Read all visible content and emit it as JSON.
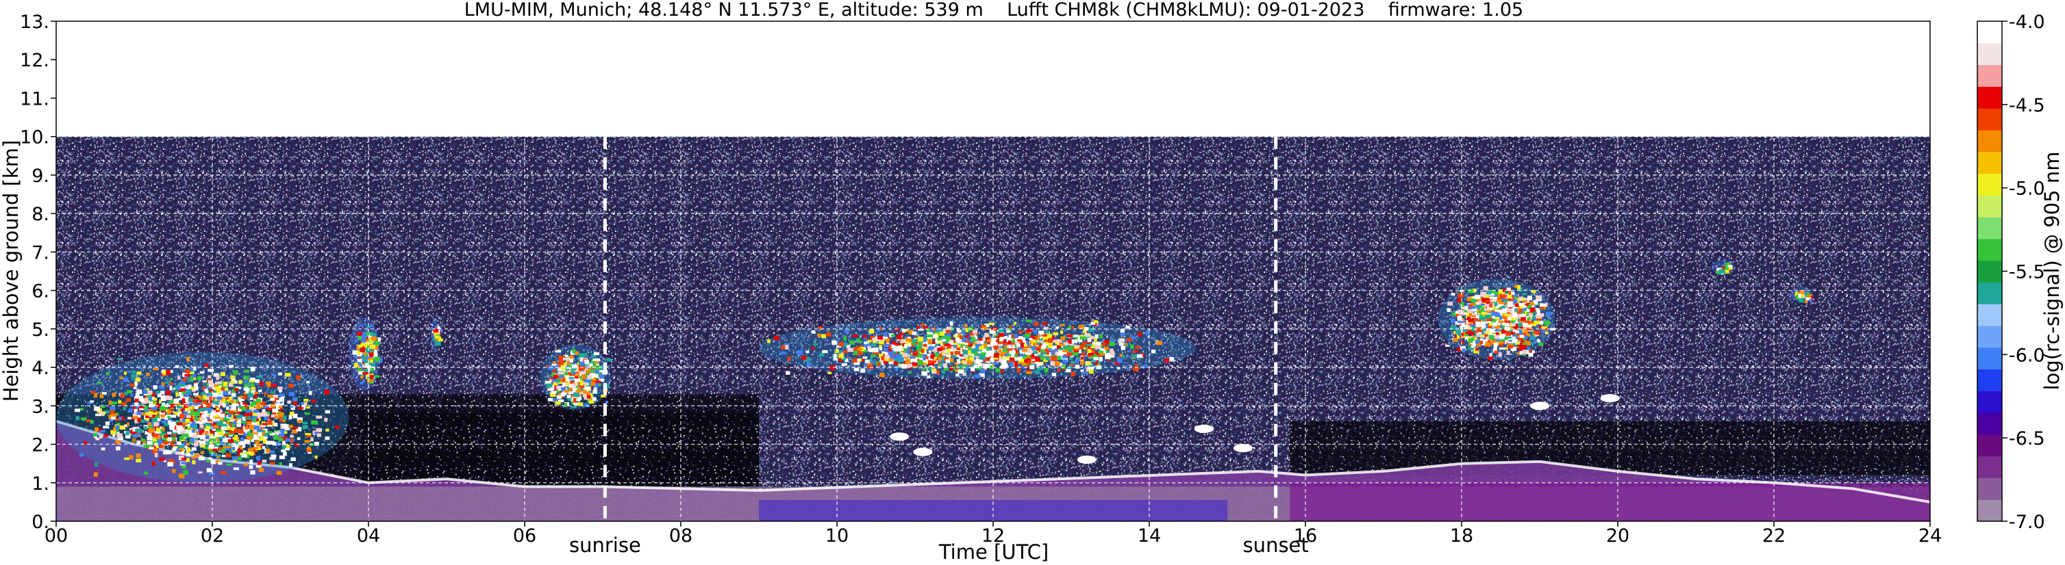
{
  "chart_data": {
    "type": "heatmap",
    "title": "LMU-MIM, Munich; 48.148° N 11.573° E, altitude: 539 m    Lufft CHM8k (CHM8kLMU): 09-01-2023    firmware: 1.05",
    "xlabel": "Time [UTC]",
    "ylabel": "Height above ground [km]",
    "colorbar_label": "log(rc-signal) @ 905 nm",
    "xlim": [
      0,
      24
    ],
    "ylim": [
      0,
      13
    ],
    "x_ticks": [
      "00",
      "02",
      "04",
      "06",
      "08",
      "10",
      "12",
      "14",
      "16",
      "18",
      "20",
      "22",
      "24"
    ],
    "y_ticks": [
      "0.",
      "1.",
      "2.",
      "3.",
      "4.",
      "5.",
      "6.",
      "7.",
      "8.",
      "9.",
      "10.",
      "11.",
      "12.",
      "13."
    ],
    "colorbar_range": [
      -7.0,
      -4.0
    ],
    "colorbar_ticks": [
      "-4.0",
      "-4.5",
      "-5.0",
      "-5.5",
      "-6.0",
      "-6.5",
      "-7.0"
    ],
    "colormap": [
      "#a08ca8",
      "#8a5d9a",
      "#7a2f8e",
      "#6a0a80",
      "#4a00a0",
      "#2b10d0",
      "#1f3ff0",
      "#3f7ff5",
      "#6fa5f8",
      "#9fc8fb",
      "#1fa89a",
      "#18a040",
      "#36c53a",
      "#7ee070",
      "#c8f060",
      "#f0f020",
      "#f5c000",
      "#f58a00",
      "#f04000",
      "#e80000",
      "#f4a0a0",
      "#f2e4e4",
      "#ffffff"
    ],
    "measurement_top_km": 10.0,
    "grid": true,
    "annotations": [
      {
        "label": "sunrise",
        "time": 7.03
      },
      {
        "label": "sunset",
        "time": 15.62
      }
    ],
    "cloud_layers": [
      {
        "t0": 0.0,
        "t1": 3.75,
        "h_base": 1.0,
        "h_top": 4.4,
        "intensity": "strong"
      },
      {
        "t0": 3.75,
        "t1": 4.15,
        "h_base": 3.4,
        "h_top": 5.3,
        "intensity": "medium"
      },
      {
        "t0": 4.8,
        "t1": 4.9,
        "h_base": 4.4,
        "h_top": 5.3,
        "intensity": "medium"
      },
      {
        "t0": 6.2,
        "t1": 7.1,
        "h_base": 2.9,
        "h_top": 4.6,
        "intensity": "strong"
      },
      {
        "t0": 9.0,
        "t1": 14.6,
        "h_base": 3.7,
        "h_top": 5.3,
        "intensity": "strong"
      },
      {
        "t0": 17.7,
        "t1": 19.2,
        "h_base": 4.2,
        "h_top": 6.3,
        "intensity": "strong"
      },
      {
        "t0": 21.2,
        "t1": 21.5,
        "h_base": 6.4,
        "h_top": 6.8,
        "intensity": "medium"
      },
      {
        "t0": 22.2,
        "t1": 22.5,
        "h_base": 5.7,
        "h_top": 6.1,
        "intensity": "medium"
      }
    ],
    "boundary_layer_top_km": [
      [
        0,
        2.6
      ],
      [
        1,
        2.0
      ],
      [
        2,
        1.6
      ],
      [
        3,
        1.4
      ],
      [
        4,
        1.0
      ],
      [
        5,
        1.1
      ],
      [
        6,
        0.9
      ],
      [
        7,
        0.9
      ],
      [
        8,
        0.85
      ],
      [
        9,
        0.8
      ],
      [
        15.4,
        1.3
      ],
      [
        16,
        1.2
      ],
      [
        17,
        1.3
      ],
      [
        18,
        1.5
      ],
      [
        19,
        1.55
      ],
      [
        20,
        1.3
      ],
      [
        21,
        1.1
      ],
      [
        22,
        1.0
      ],
      [
        23,
        0.85
      ],
      [
        24,
        0.5
      ]
    ]
  }
}
